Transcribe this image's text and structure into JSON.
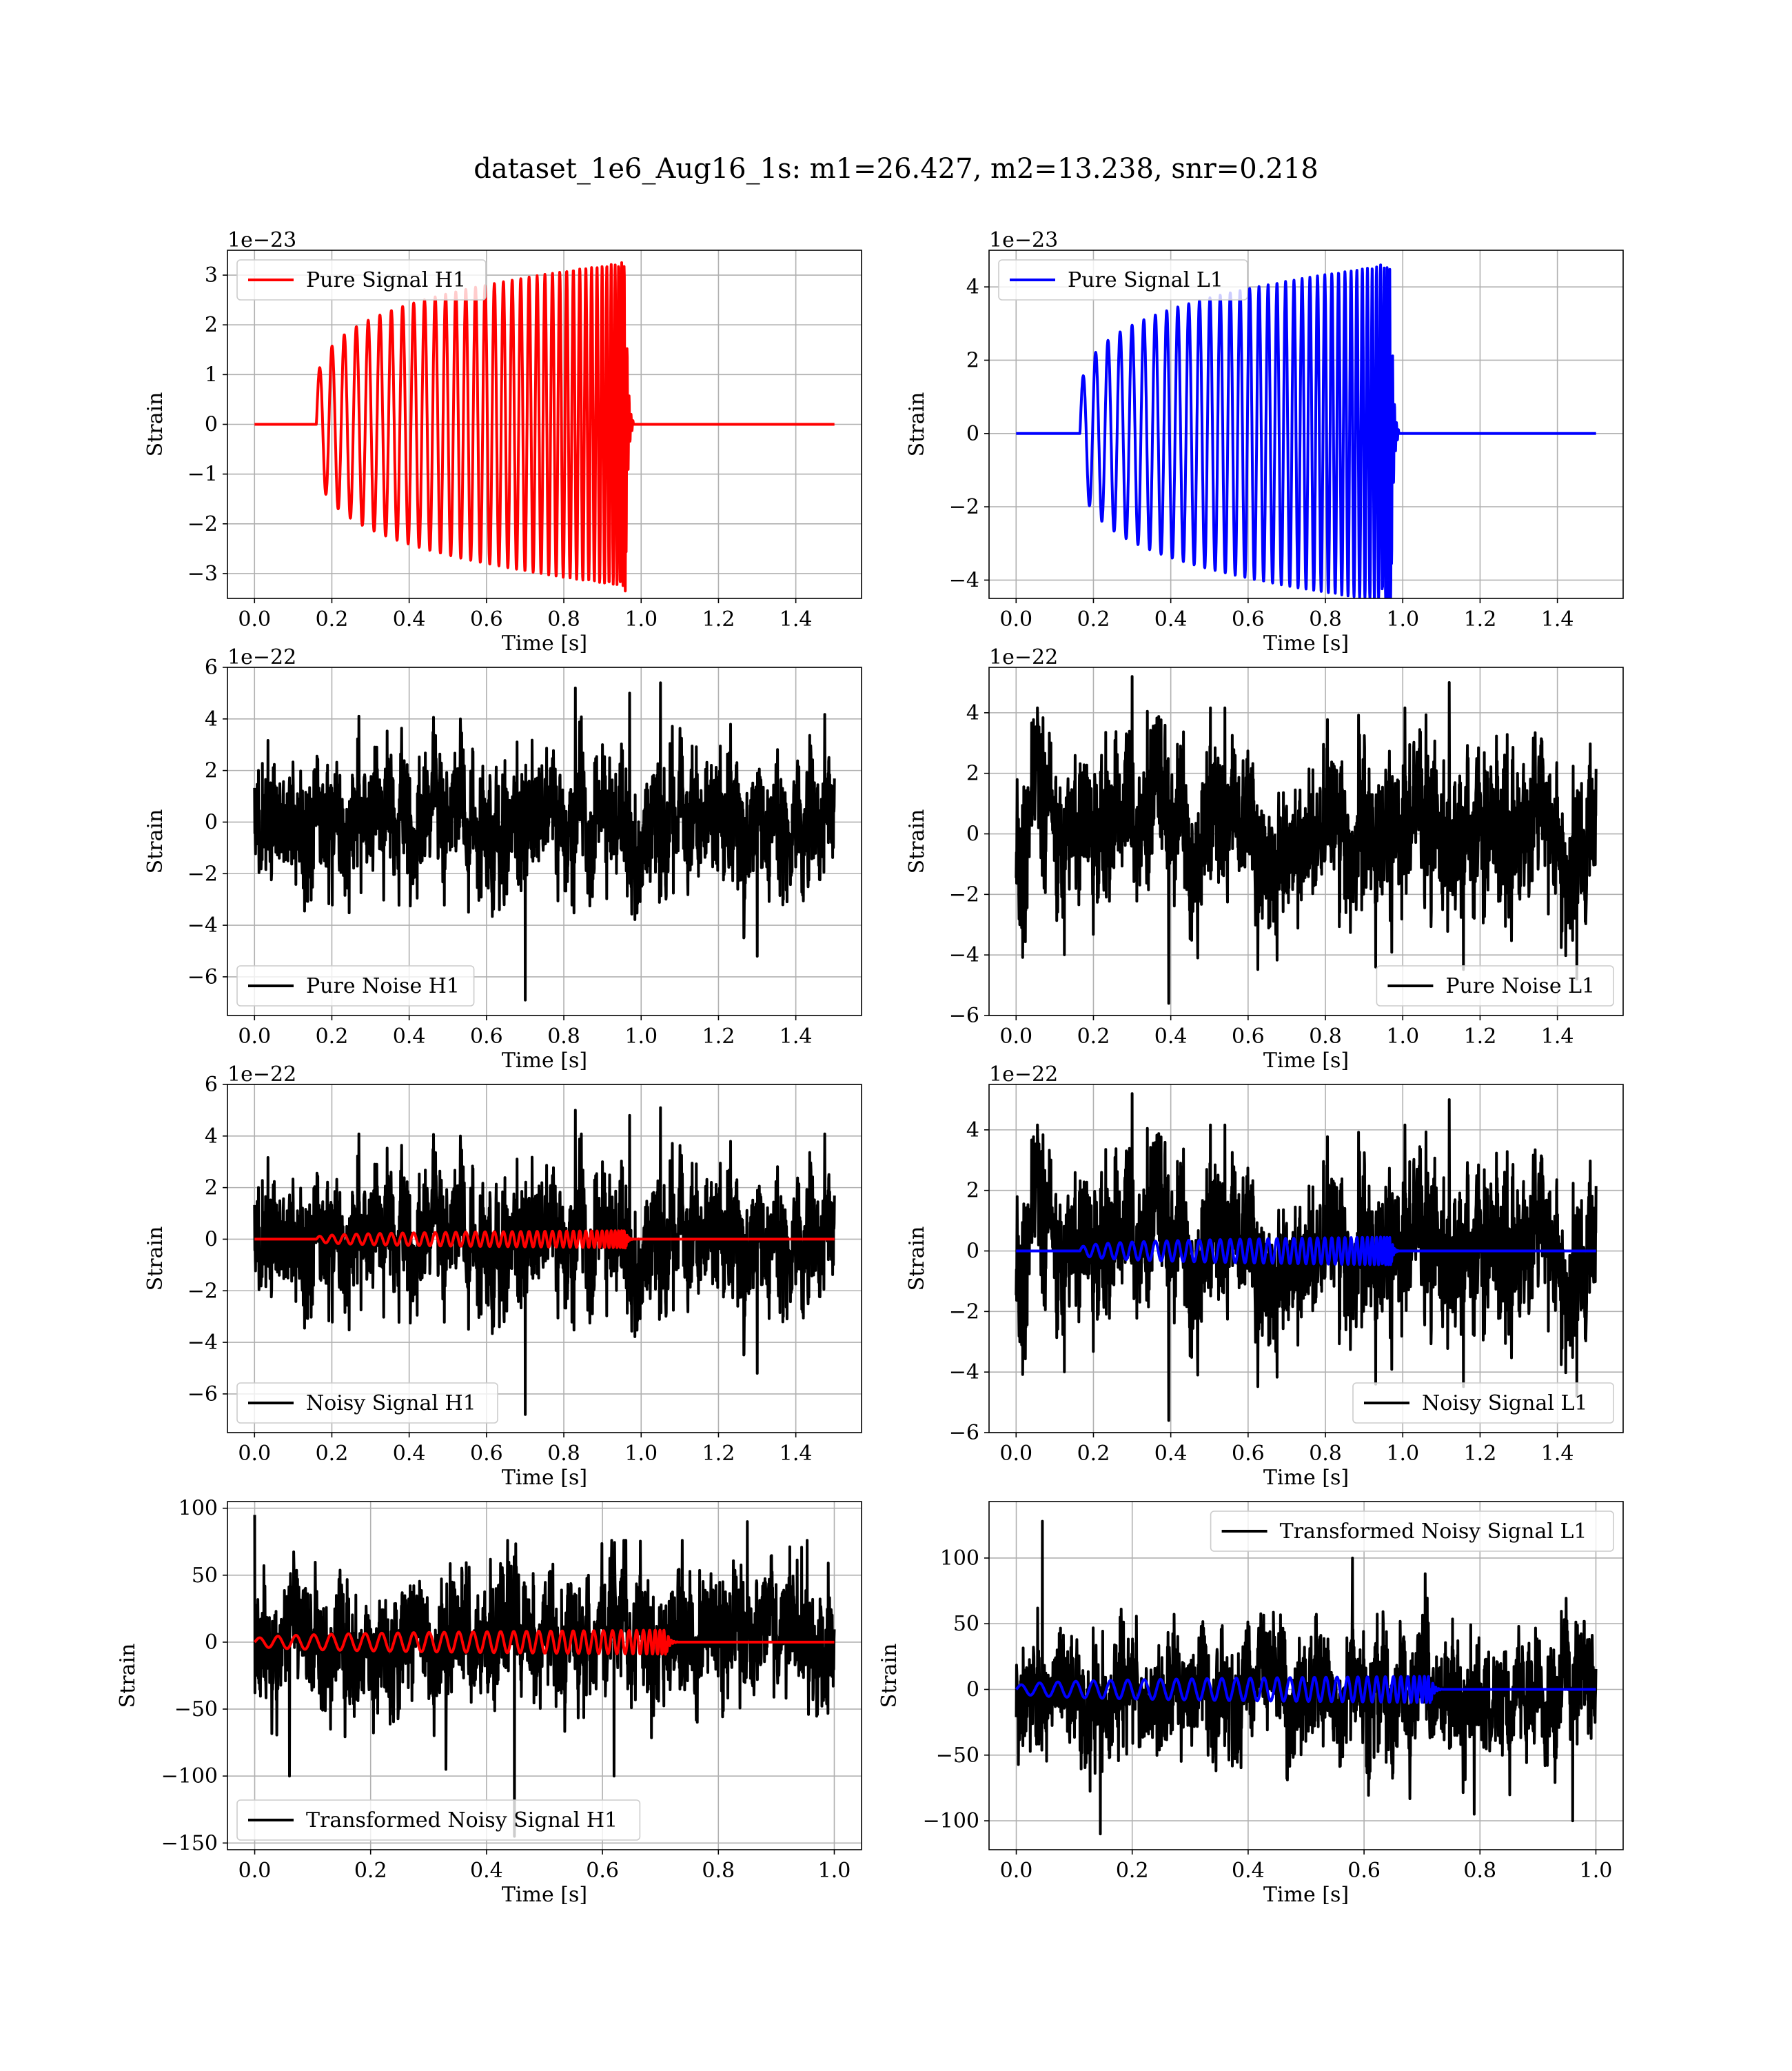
{
  "figure": {
    "title": "dataset_1e6_Aug16_1s: m1=26.427, m2=13.238, snr=0.218"
  },
  "chart_data": [
    {
      "type": "line",
      "id": "pure-signal-h1",
      "kind": "chirp",
      "xlabel": "Time [s]",
      "ylabel": "Strain",
      "offset_text": "1e−23",
      "xlim": [
        -0.07,
        1.57
      ],
      "ylim": [
        -3.5,
        3.5
      ],
      "xticks": [
        0.0,
        0.2,
        0.4,
        0.6,
        0.8,
        1.0,
        1.2,
        1.4
      ],
      "yticks": [
        -3,
        -2,
        -1,
        0,
        1,
        2,
        3
      ],
      "legend_position": "upper left",
      "grid": true,
      "series": [
        {
          "name": "Pure Signal H1",
          "color": "#ff0000",
          "x_range": [
            0.0,
            1.5
          ],
          "chirp_start": 0.16,
          "merger_time": 0.96,
          "ringdown_end": 0.98,
          "initial_amplitude": 0.85,
          "peak_amplitude": 3.25,
          "min_value": -3.35,
          "cycles": 38
        }
      ]
    },
    {
      "type": "line",
      "id": "pure-signal-l1",
      "kind": "chirp",
      "xlabel": "Time [s]",
      "ylabel": "Strain",
      "offset_text": "1e−23",
      "xlim": [
        -0.07,
        1.57
      ],
      "ylim": [
        -4.5,
        5.0
      ],
      "xticks": [
        0.0,
        0.2,
        0.4,
        0.6,
        0.8,
        1.0,
        1.2,
        1.4
      ],
      "yticks": [
        -4,
        -2,
        0,
        2,
        4
      ],
      "legend_position": "upper left",
      "grid": true,
      "series": [
        {
          "name": "Pure Signal L1",
          "color": "#0000ff",
          "x_range": [
            0.0,
            1.5
          ],
          "chirp_start": 0.165,
          "merger_time": 0.97,
          "ringdown_end": 0.99,
          "initial_amplitude": 1.1,
          "peak_amplitude": 4.6,
          "min_value": -4.15,
          "cycles": 38
        }
      ]
    },
    {
      "type": "line",
      "id": "pure-noise-h1",
      "kind": "noise",
      "xlabel": "Time [s]",
      "ylabel": "Strain",
      "offset_text": "1e−22",
      "xlim": [
        -0.07,
        1.57
      ],
      "ylim": [
        -7.5,
        6.0
      ],
      "xticks": [
        0.0,
        0.2,
        0.4,
        0.6,
        0.8,
        1.0,
        1.2,
        1.4
      ],
      "yticks": [
        -6,
        -4,
        -2,
        0,
        2,
        4,
        6
      ],
      "legend_position": "lower left",
      "grid": true,
      "series": [
        {
          "name": "Pure Noise H1",
          "color": "#000000",
          "x_range": [
            0.0,
            1.5
          ],
          "spread": 1.45,
          "max_value": 5.4,
          "min_value": -6.9,
          "spikes": [
            [
              0.7,
              -6.9
            ],
            [
              0.83,
              5.2
            ],
            [
              1.05,
              5.4
            ],
            [
              0.97,
              5.0
            ],
            [
              1.3,
              -5.2
            ]
          ],
          "seed": 11
        }
      ]
    },
    {
      "type": "line",
      "id": "pure-noise-l1",
      "kind": "noise",
      "xlabel": "Time [s]",
      "ylabel": "Strain",
      "offset_text": "1e−22",
      "xlim": [
        -0.07,
        1.57
      ],
      "ylim": [
        -6.0,
        5.5
      ],
      "xticks": [
        0.0,
        0.2,
        0.4,
        0.6,
        0.8,
        1.0,
        1.2,
        1.4
      ],
      "yticks": [
        -6,
        -4,
        -2,
        0,
        2,
        4
      ],
      "legend_position": "lower right",
      "grid": true,
      "series": [
        {
          "name": "Pure Noise L1",
          "color": "#000000",
          "x_range": [
            0.0,
            1.5
          ],
          "spread": 1.45,
          "max_value": 5.2,
          "min_value": -5.6,
          "spikes": [
            [
              0.395,
              -5.6
            ],
            [
              0.3,
              5.2
            ],
            [
              1.12,
              5.0
            ],
            [
              0.93,
              -4.4
            ],
            [
              1.45,
              -4.8
            ]
          ],
          "seed": 23
        }
      ]
    },
    {
      "type": "line",
      "id": "noisy-signal-h1",
      "kind": "noise+chirp",
      "xlabel": "Time [s]",
      "ylabel": "Strain",
      "offset_text": "1e−22",
      "xlim": [
        -0.07,
        1.57
      ],
      "ylim": [
        -7.5,
        6.0
      ],
      "xticks": [
        0.0,
        0.2,
        0.4,
        0.6,
        0.8,
        1.0,
        1.2,
        1.4
      ],
      "yticks": [
        -6,
        -4,
        -2,
        0,
        2,
        4,
        6
      ],
      "legend_position": "lower left",
      "grid": true,
      "series": [
        {
          "name": "Noisy Signal H1",
          "color": "#000000",
          "x_range": [
            0.0,
            1.5
          ],
          "spread": 1.45,
          "max_value": 5.1,
          "min_value": -6.8,
          "spikes": [
            [
              0.7,
              -6.8
            ],
            [
              0.83,
              5.0
            ],
            [
              1.05,
              5.1
            ],
            [
              0.97,
              4.8
            ],
            [
              1.3,
              -5.2
            ]
          ],
          "seed": 11
        },
        {
          "color": "#ff0000",
          "x_range": [
            0.0,
            1.5
          ],
          "chirp_start": 0.16,
          "merger_time": 0.96,
          "ringdown_end": 0.98,
          "initial_amplitude": 0.085,
          "peak_amplitude": 0.33,
          "min_value": -0.34,
          "cycles": 38
        }
      ]
    },
    {
      "type": "line",
      "id": "noisy-signal-l1",
      "kind": "noise+chirp",
      "xlabel": "Time [s]",
      "ylabel": "Strain",
      "offset_text": "1e−22",
      "xlim": [
        -0.07,
        1.57
      ],
      "ylim": [
        -6.0,
        5.5
      ],
      "xticks": [
        0.0,
        0.2,
        0.4,
        0.6,
        0.8,
        1.0,
        1.2,
        1.4
      ],
      "yticks": [
        -6,
        -4,
        -2,
        0,
        2,
        4
      ],
      "legend_position": "lower right",
      "grid": true,
      "series": [
        {
          "name": "Noisy Signal L1",
          "color": "#000000",
          "x_range": [
            0.0,
            1.5
          ],
          "spread": 1.45,
          "max_value": 5.2,
          "min_value": -5.6,
          "spikes": [
            [
              0.395,
              -5.6
            ],
            [
              0.3,
              5.2
            ],
            [
              1.12,
              5.0
            ],
            [
              0.93,
              -4.4
            ],
            [
              1.45,
              -4.8
            ]
          ],
          "seed": 23
        },
        {
          "color": "#0000ff",
          "x_range": [
            0.0,
            1.5
          ],
          "chirp_start": 0.165,
          "merger_time": 0.97,
          "ringdown_end": 0.99,
          "initial_amplitude": 0.11,
          "peak_amplitude": 0.46,
          "min_value": -0.42,
          "cycles": 38
        }
      ]
    },
    {
      "type": "line",
      "id": "transformed-noisy-signal-h1",
      "kind": "noise+chirp",
      "xlabel": "Time [s]",
      "ylabel": "Strain",
      "offset_text": "",
      "xlim": [
        -0.047,
        1.047
      ],
      "ylim": [
        -155,
        105
      ],
      "xticks": [
        0.0,
        0.2,
        0.4,
        0.6,
        0.8,
        1.0
      ],
      "yticks": [
        -150,
        -100,
        -50,
        0,
        50,
        100
      ],
      "legend_position": "lower left",
      "grid": true,
      "series": [
        {
          "name": "Transformed Noisy Signal H1",
          "color": "#000000",
          "x_range": [
            0.0,
            1.0
          ],
          "spread": 26,
          "max_value": 95,
          "min_value": -145,
          "spikes": [
            [
              0.448,
              -145
            ],
            [
              0.06,
              -100
            ],
            [
              0.0,
              95
            ],
            [
              0.62,
              -100
            ],
            [
              0.85,
              90
            ],
            [
              0.33,
              -95
            ]
          ],
          "seed": 37
        },
        {
          "color": "#ff0000",
          "x_range": [
            0.0,
            1.0
          ],
          "chirp_start": 0.0,
          "merger_time": 0.71,
          "ringdown_end": 0.73,
          "initial_amplitude": 2.5,
          "peak_amplitude": 9,
          "min_value": -9,
          "cycles": 34
        }
      ]
    },
    {
      "type": "line",
      "id": "transformed-noisy-signal-l1",
      "kind": "noise+chirp",
      "xlabel": "Time [s]",
      "ylabel": "Strain",
      "offset_text": "",
      "xlim": [
        -0.047,
        1.047
      ],
      "ylim": [
        -122,
        143
      ],
      "xticks": [
        0.0,
        0.2,
        0.4,
        0.6,
        0.8,
        1.0
      ],
      "yticks": [
        -100,
        -50,
        0,
        50,
        100
      ],
      "legend_position": "upper right",
      "grid": true,
      "series": [
        {
          "name": "Transformed Noisy Signal L1",
          "color": "#000000",
          "x_range": [
            0.0,
            1.0
          ],
          "spread": 26,
          "max_value": 128,
          "min_value": -110,
          "spikes": [
            [
              0.045,
              128
            ],
            [
              0.145,
              -110
            ],
            [
              0.58,
              100
            ],
            [
              0.79,
              -95
            ],
            [
              0.96,
              -100
            ]
          ],
          "seed": 53
        },
        {
          "color": "#0000ff",
          "x_range": [
            0.0,
            1.0
          ],
          "chirp_start": 0.0,
          "merger_time": 0.715,
          "ringdown_end": 0.735,
          "initial_amplitude": 2.5,
          "peak_amplitude": 10,
          "min_value": -10,
          "cycles": 34
        }
      ]
    }
  ]
}
